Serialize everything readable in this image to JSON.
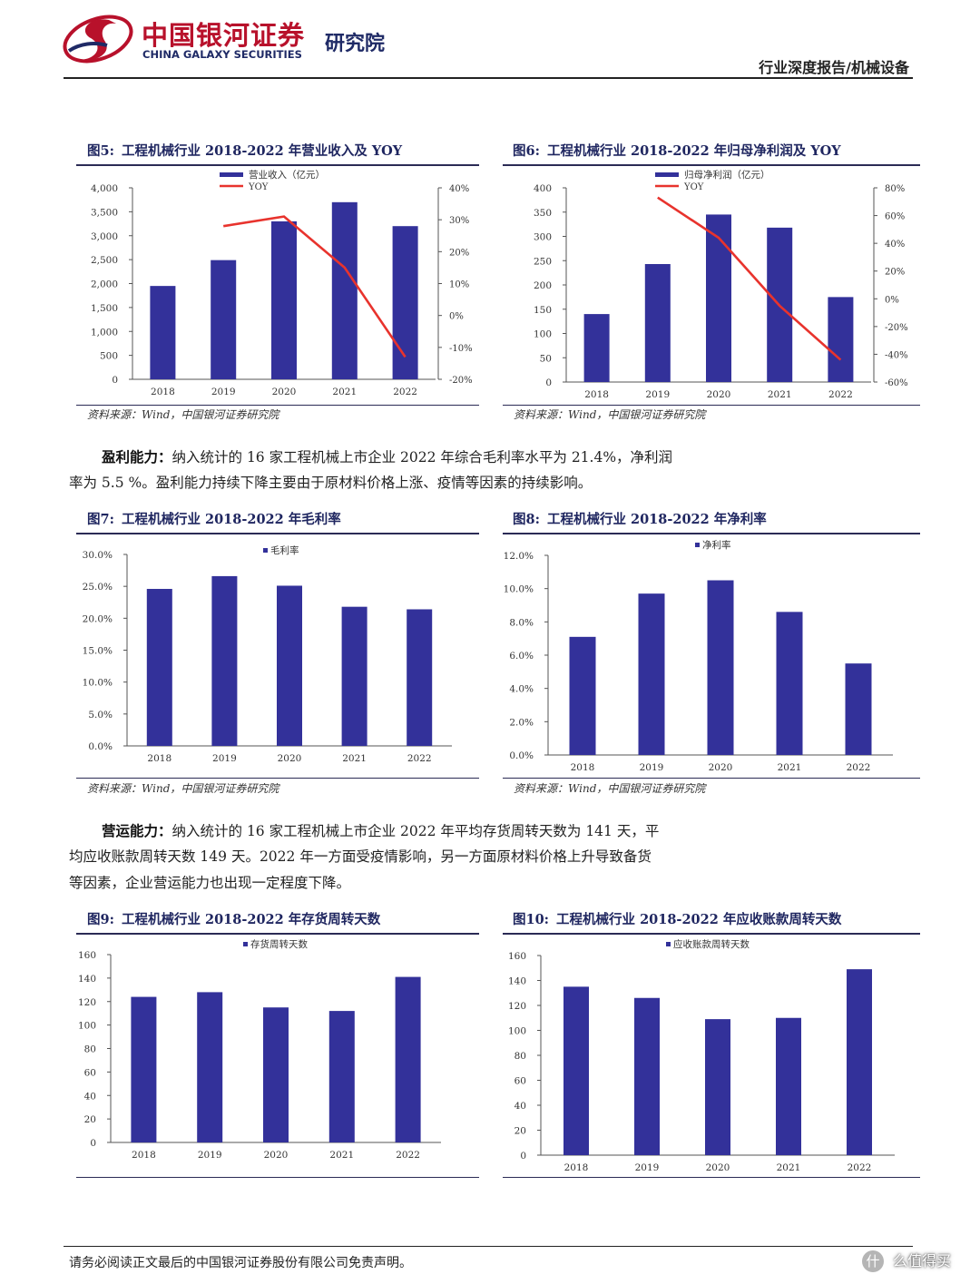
{
  "header": {
    "logo_cn": "中国银河证券",
    "logo_en": "CHINA GALAXY SECURITIES",
    "institute": "研究院",
    "report_type": "行业深度报告/机械设备"
  },
  "figures": [
    {
      "num": "图5:",
      "title": "工程机械行业 2018-2022 年营业收入及 YOY",
      "source": "资料来源：Wind，中国银河证券研究院"
    },
    {
      "num": "图6:",
      "title": "工程机械行业 2018-2022 年归母净利润及 YOY",
      "source": "资料来源：Wind，中国银河证券研究院"
    },
    {
      "num": "图7:",
      "title": "工程机械行业 2018-2022 年毛利率",
      "source": "资料来源：Wind，中国银河证券研究院"
    },
    {
      "num": "图8:",
      "title": "工程机械行业 2018-2022 年净利率",
      "source": "资料来源：Wind，中国银河证券研究院"
    },
    {
      "num": "图9:",
      "title": "工程机械行业 2018-2022 年存货周转天数"
    },
    {
      "num": "图10:",
      "title": "工程机械行业 2018-2022 年应收账款周转天数"
    }
  ],
  "paragraphs": {
    "p1": {
      "lead": "盈利能力：",
      "line1": "纳入统计的 16 家工程机械上市企业 2022 年综合毛利率水平为 21.4%，净利润",
      "line2": "率为 5.5 %。盈利能力持续下降主要由于原材料价格上涨、疫情等因素的持续影响。"
    },
    "p2": {
      "lead": "营运能力：",
      "line1": "纳入统计的 16 家工程机械上市企业 2022 年平均存货周转天数为 141 天，平",
      "line2": "均应收账款周转天数 149 天。2022 年一方面受疫情影响，另一方面原材料价格上升导致备货",
      "line3": "等因素，企业营运能力也出现一定程度下降。"
    }
  },
  "footer": {
    "disclaimer": "请务必阅读正文最后的中国银河证券股份有限公司免责声明。",
    "page": "什",
    "watermark": "么值得买"
  },
  "colors": {
    "bar": "#33319a",
    "line": "#e8332d",
    "brand_red": "#b8112b",
    "brand_navy": "#1f2a66"
  },
  "chart_data": [
    {
      "type": "bar",
      "categories": [
        "2018",
        "2019",
        "2020",
        "2021",
        "2022"
      ],
      "series": [
        {
          "name": "营业收入（亿元）",
          "type": "bar",
          "axis": "left",
          "values": [
            1950,
            2490,
            3300,
            3700,
            3200
          ]
        },
        {
          "name": "YOY",
          "type": "line",
          "axis": "right",
          "values": [
            null,
            28,
            31,
            15,
            -13
          ]
        }
      ],
      "yticks": [
        "0",
        "500",
        "1,000",
        "1,500",
        "2,000",
        "2,500",
        "3,000",
        "3,500",
        "4,000"
      ],
      "ylim": [
        0,
        4000
      ],
      "y2ticks": [
        "-20%",
        "-10%",
        "0%",
        "10%",
        "20%",
        "30%",
        "40%"
      ],
      "y2lim": [
        -20,
        40
      ],
      "legend": "top"
    },
    {
      "type": "bar",
      "categories": [
        "2018",
        "2019",
        "2020",
        "2021",
        "2022"
      ],
      "series": [
        {
          "name": "归母净利润（亿元）",
          "type": "bar",
          "axis": "left",
          "values": [
            140,
            243,
            345,
            318,
            175
          ]
        },
        {
          "name": "YOY",
          "type": "line",
          "axis": "right",
          "values": [
            null,
            73,
            44,
            -5,
            -44
          ]
        }
      ],
      "yticks": [
        "0",
        "50",
        "100",
        "150",
        "200",
        "250",
        "300",
        "350",
        "400"
      ],
      "ylim": [
        0,
        400
      ],
      "y2ticks": [
        "-60%",
        "-40%",
        "-20%",
        "0%",
        "20%",
        "40%",
        "60%",
        "80%"
      ],
      "y2lim": [
        -60,
        80
      ],
      "legend": "top"
    },
    {
      "type": "bar",
      "categories": [
        "2018",
        "2019",
        "2020",
        "2021",
        "2022"
      ],
      "series": [
        {
          "name": "毛利率",
          "values": [
            24.6,
            26.6,
            25.1,
            21.8,
            21.4
          ]
        }
      ],
      "yticks": [
        "0.0%",
        "5.0%",
        "10.0%",
        "15.0%",
        "20.0%",
        "25.0%",
        "30.0%"
      ],
      "ylim": [
        0,
        30
      ],
      "legend": "top"
    },
    {
      "type": "bar",
      "categories": [
        "2018",
        "2019",
        "2020",
        "2021",
        "2022"
      ],
      "series": [
        {
          "name": "净利率",
          "values": [
            7.1,
            9.7,
            10.5,
            8.6,
            5.5
          ]
        }
      ],
      "yticks": [
        "0.0%",
        "2.0%",
        "4.0%",
        "6.0%",
        "8.0%",
        "10.0%",
        "12.0%"
      ],
      "ylim": [
        0,
        12
      ],
      "legend": "top"
    },
    {
      "type": "bar",
      "categories": [
        "2018",
        "2019",
        "2020",
        "2021",
        "2022"
      ],
      "series": [
        {
          "name": "存货周转天数",
          "values": [
            124,
            128,
            115,
            112,
            141
          ]
        }
      ],
      "yticks": [
        "0",
        "20",
        "40",
        "60",
        "80",
        "100",
        "120",
        "140",
        "160"
      ],
      "ylim": [
        0,
        160
      ],
      "legend": "top"
    },
    {
      "type": "bar",
      "categories": [
        "2018",
        "2019",
        "2020",
        "2021",
        "2022"
      ],
      "series": [
        {
          "name": "应收账款周转天数",
          "values": [
            135,
            126,
            109,
            110,
            149
          ]
        }
      ],
      "yticks": [
        "0",
        "20",
        "40",
        "60",
        "80",
        "100",
        "120",
        "140",
        "160"
      ],
      "ylim": [
        0,
        160
      ],
      "legend": "top"
    }
  ]
}
